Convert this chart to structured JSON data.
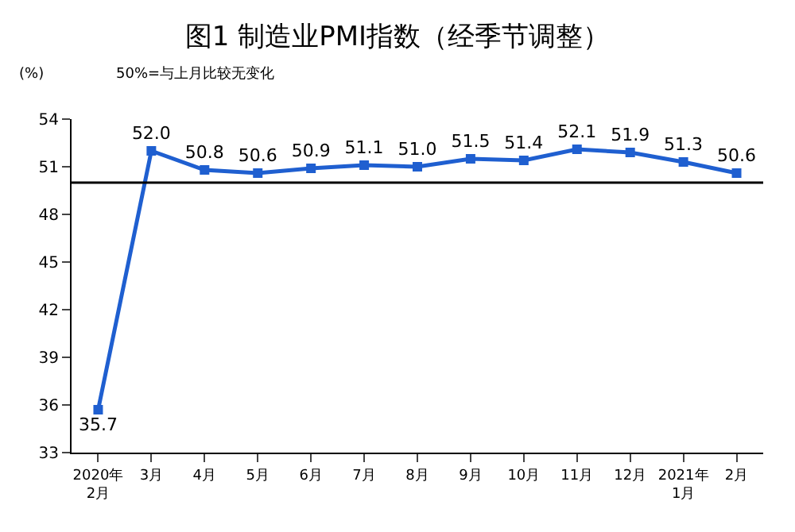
{
  "chart_data": {
    "type": "line",
    "title": "图1 制造业PMI指数（经季节调整）",
    "annotations": [
      "(%)",
      "50%=与上月比较无变化"
    ],
    "categories": [
      "2020年\n2月",
      "3月",
      "4月",
      "5月",
      "6月",
      "7月",
      "8月",
      "9月",
      "10月",
      "11月",
      "12月",
      "2021年\n1月",
      "2月"
    ],
    "series": [
      {
        "color": "#1f5fd0",
        "values": [
          35.7,
          52.0,
          50.8,
          50.6,
          50.9,
          51.1,
          51.0,
          51.5,
          51.4,
          52.1,
          51.9,
          51.3,
          50.6
        ],
        "value_labels": [
          "35.7",
          "52.0",
          "50.8",
          "50.6",
          "50.9",
          "51.1",
          "51.0",
          "51.5",
          "51.4",
          "52.1",
          "51.9",
          "51.3",
          "50.6"
        ]
      }
    ],
    "ylim": [
      33,
      54
    ],
    "yticks": [
      33,
      36,
      39,
      42,
      45,
      48,
      51,
      54
    ],
    "ref_lines": [
      {
        "axis": "y",
        "value": 50,
        "color": "#000000"
      }
    ],
    "marker": "square",
    "line_style": "solid",
    "legend": false
  }
}
